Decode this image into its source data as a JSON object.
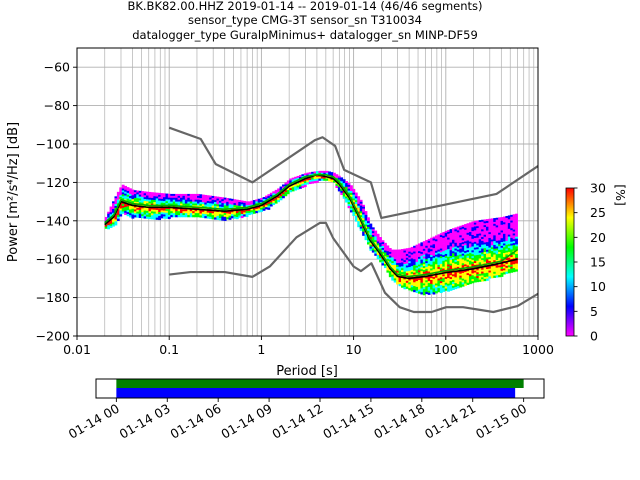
{
  "figure": {
    "title_lines": [
      "BK.BK82.00.HHZ   2019-01-14 -- 2019-01-14  (46/46 segments)",
      "sensor_type CMG-3T sensor_sn T310034",
      "datalogger_type GuralpMinimus+ datalogger_sn MINP-DF59"
    ]
  },
  "chart_data": [
    {
      "type": "heatmap",
      "title": "BK.BK82.00.HHZ   2019-01-14 -- 2019-01-14  (46/46 segments)",
      "xlabel": "Period [s]",
      "ylabel": "Power [m²/s⁴/Hz] [dB]",
      "x_scale": "log",
      "xlim": [
        0.01,
        1000
      ],
      "ylim": [
        -200,
        -50
      ],
      "x_tick_labels": [
        "0.01",
        "0.1",
        "1",
        "10",
        "100",
        "1000"
      ],
      "x_tick_values": [
        0.01,
        0.1,
        1,
        10,
        100,
        1000
      ],
      "y_ticks": [
        -60,
        -80,
        -100,
        -120,
        -140,
        -160,
        -180,
        -200
      ],
      "grid": true,
      "colorbar": {
        "label": "[%]",
        "range": [
          0,
          30
        ],
        "ticks": [
          0,
          5,
          10,
          15,
          20,
          25,
          30
        ],
        "colormap": [
          "#ff00ff",
          "#0000ff",
          "#00ffff",
          "#00ff00",
          "#ffff00",
          "#ff0000"
        ]
      },
      "series": [
        {
          "name": "new_high_noise_model",
          "color": "#666666",
          "x": [
            0.1,
            0.22,
            0.32,
            0.8,
            3.8,
            4.6,
            6.3,
            7.9,
            15.4,
            20,
            354.8,
            1000
          ],
          "y": [
            -91.5,
            -97.4,
            -110.5,
            -120,
            -98,
            -96.5,
            -101,
            -113.5,
            -120,
            -138.5,
            -126,
            -111.5
          ]
        },
        {
          "name": "new_low_noise_model",
          "color": "#666666",
          "x": [
            0.1,
            0.17,
            0.4,
            0.8,
            1.24,
            2.4,
            4.3,
            5,
            6,
            10,
            12,
            15.6,
            21.9,
            31.6,
            45,
            70,
            101,
            154,
            328,
            600,
            1000
          ],
          "y": [
            -168,
            -166.7,
            -166.7,
            -169.2,
            -163.7,
            -148.6,
            -141.1,
            -141.1,
            -149,
            -163.8,
            -166.2,
            -162.1,
            -177.5,
            -185,
            -187.5,
            -187.5,
            -185,
            -185,
            -187.5,
            -184.4,
            -178
          ]
        },
        {
          "name": "mean_psd",
          "color": "#000000",
          "x": [
            0.02,
            0.025,
            0.03,
            0.04,
            0.06,
            0.1,
            0.2,
            0.4,
            0.7,
            1,
            1.5,
            2,
            3,
            4,
            5,
            6,
            7,
            9,
            12,
            15,
            20,
            25,
            30,
            40,
            60,
            100,
            200,
            400,
            600
          ],
          "y": [
            -142,
            -138,
            -130,
            -132,
            -133,
            -133,
            -134,
            -135,
            -134,
            -132,
            -127,
            -122,
            -118,
            -116,
            -117,
            -118,
            -121,
            -128,
            -140,
            -150,
            -158,
            -165,
            -169,
            -170,
            -169,
            -167,
            -165,
            -162,
            -160
          ]
        },
        {
          "name": "mode_psd",
          "color": "#00aa00",
          "x": [
            0.02,
            0.025,
            0.03,
            0.04,
            0.06,
            0.1,
            0.2,
            0.4,
            0.7,
            1,
            1.5,
            2,
            3,
            4,
            5,
            6,
            7,
            9,
            12,
            15,
            20,
            25,
            30,
            40,
            60,
            100,
            200,
            400,
            600
          ],
          "y": [
            -141,
            -137,
            -129,
            -131,
            -132,
            -132,
            -133,
            -134,
            -133,
            -131,
            -126,
            -121,
            -117,
            -116,
            -116,
            -117,
            -120,
            -127,
            -139,
            -149,
            -157,
            -164,
            -168,
            -169,
            -168,
            -166,
            -164,
            -161,
            -155
          ]
        }
      ],
      "hist_upper": {
        "x": [
          0.02,
          0.025,
          0.03,
          0.04,
          0.06,
          0.1,
          0.2,
          0.4,
          0.7,
          1,
          1.5,
          2,
          3,
          4,
          5,
          6,
          7,
          9,
          12,
          15,
          20,
          25,
          30,
          40,
          60,
          100,
          200,
          400,
          600
        ],
        "y": [
          -138,
          -128,
          -121,
          -124,
          -125,
          -126,
          -126,
          -128,
          -130,
          -128,
          -123,
          -118,
          -115,
          -114,
          -114,
          -115,
          -117,
          -121,
          -130,
          -142,
          -150,
          -155,
          -155,
          -154,
          -150,
          -145,
          -140,
          -138,
          -136
        ]
      },
      "hist_lower": {
        "x": [
          0.02,
          0.025,
          0.03,
          0.04,
          0.06,
          0.1,
          0.2,
          0.4,
          0.7,
          1,
          1.5,
          2,
          3,
          4,
          5,
          6,
          7,
          9,
          12,
          15,
          20,
          25,
          30,
          40,
          60,
          100,
          200,
          400,
          600
        ],
        "y": [
          -144,
          -142,
          -136,
          -138,
          -139,
          -138,
          -138,
          -139,
          -137,
          -135,
          -130,
          -125,
          -121,
          -119,
          -119,
          -120,
          -125,
          -134,
          -146,
          -155,
          -162,
          -170,
          -173,
          -176,
          -178,
          -176,
          -172,
          -168,
          -165
        ]
      }
    },
    {
      "type": "timeline",
      "x_tick_labels": [
        "01-14 00",
        "01-14 03",
        "01-14 06",
        "01-14 09",
        "01-14 12",
        "01-14 15",
        "01-14 18",
        "01-14 21",
        "01-15 00"
      ],
      "x_tick_hours": [
        0,
        3,
        6,
        9,
        12,
        15,
        18,
        21,
        24
      ],
      "xlim_hours": [
        -1.2,
        25.2
      ],
      "series": [
        {
          "name": "data_coverage",
          "color": "#008000",
          "start_hour": 0,
          "end_hour": 24
        },
        {
          "name": "psd_coverage",
          "color": "#0000ff",
          "start_hour": 0,
          "end_hour": 23.5
        }
      ]
    }
  ]
}
